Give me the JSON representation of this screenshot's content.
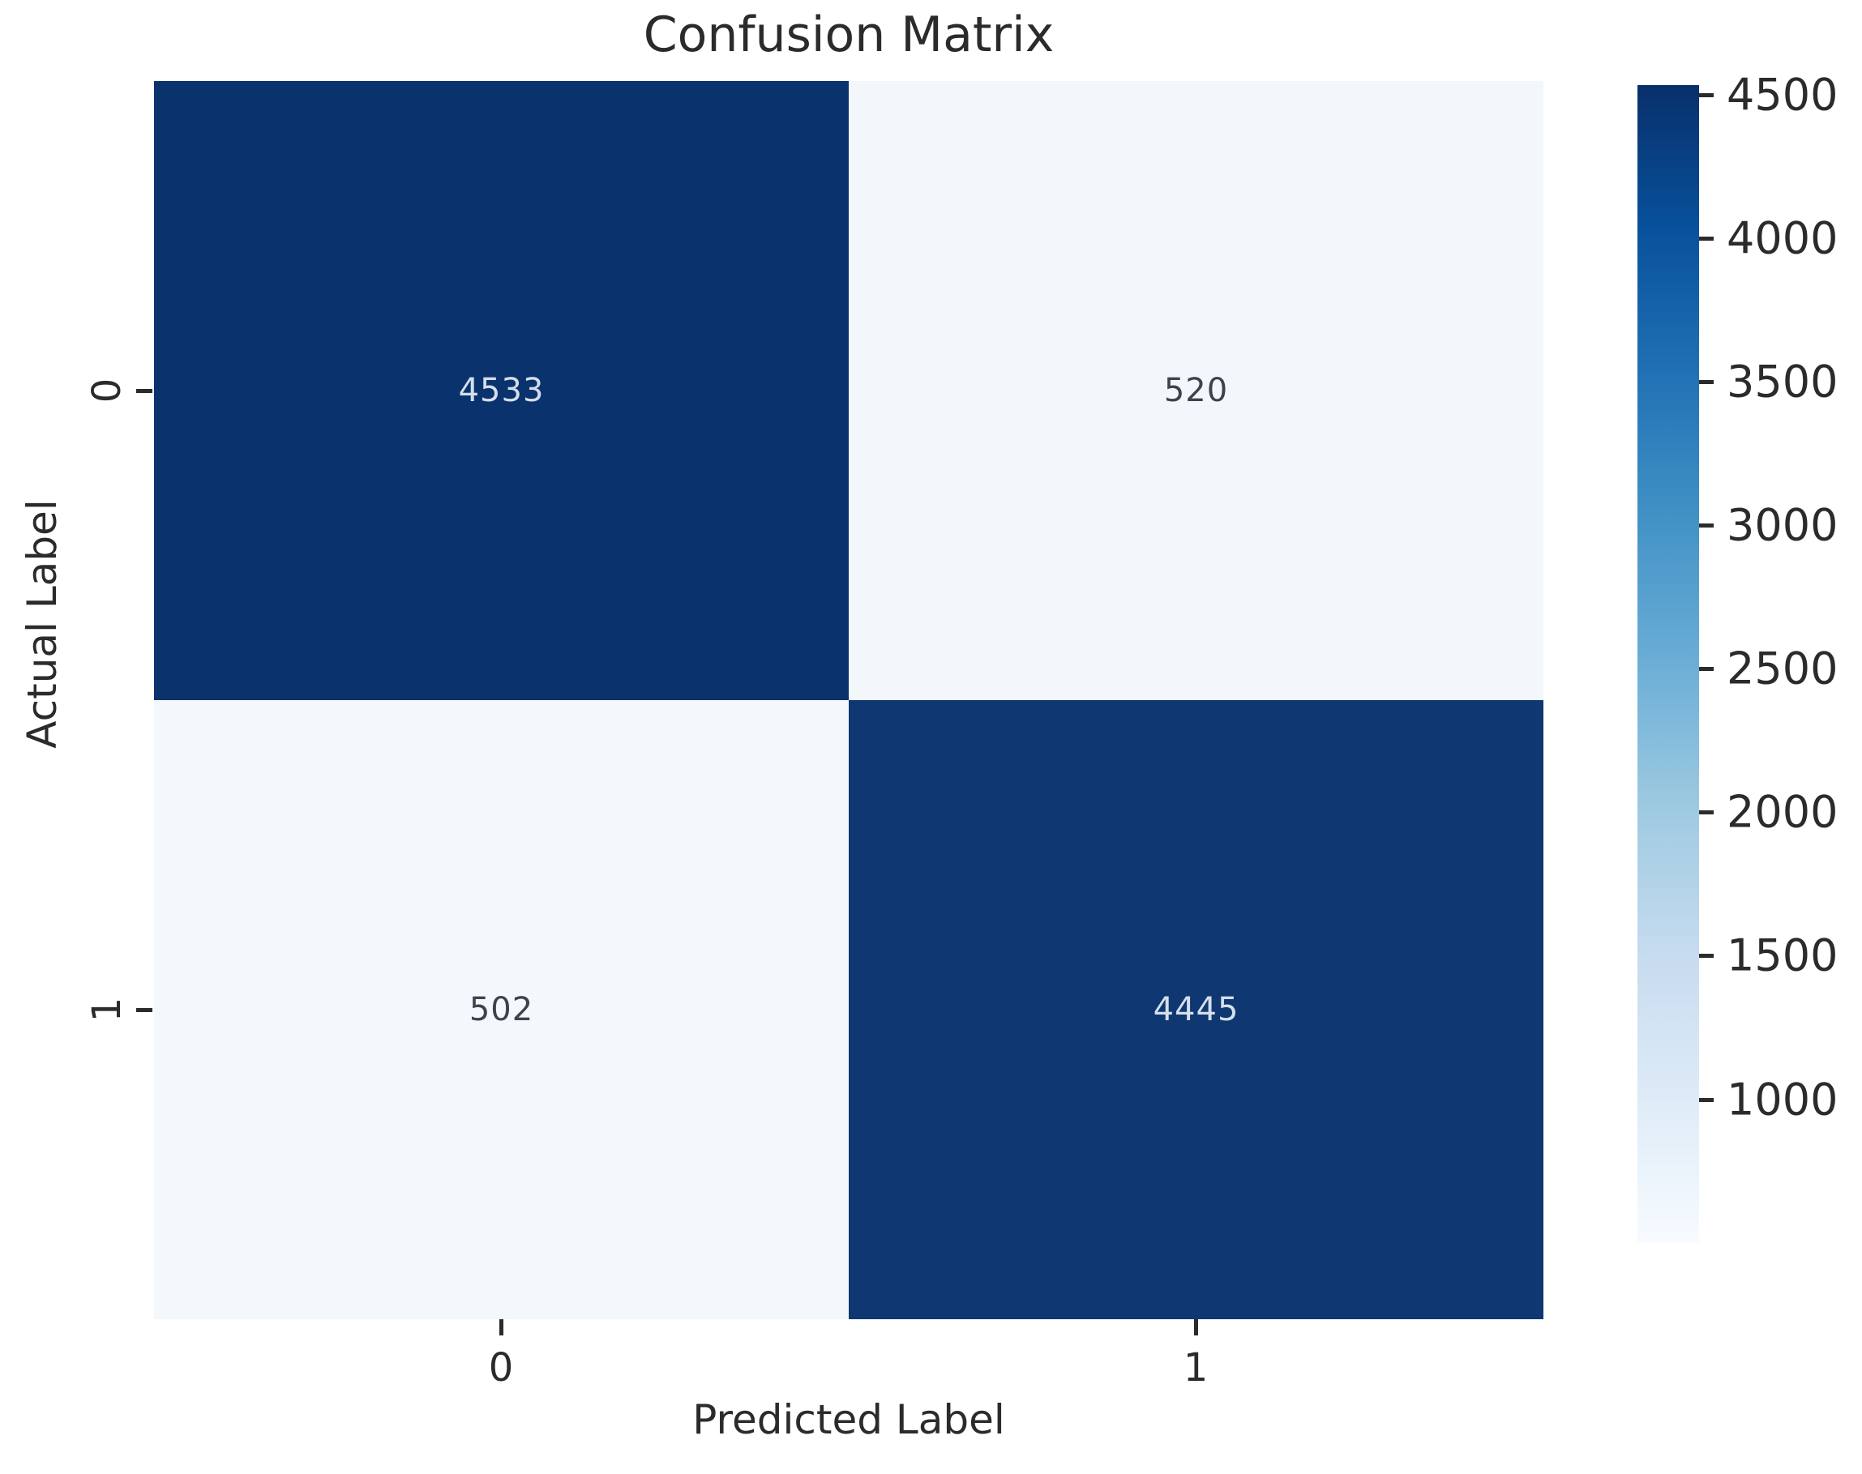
{
  "chart_data": {
    "type": "heatmap",
    "title": "Confusion Matrix",
    "xlabel": "Predicted Label",
    "ylabel": "Actual Label",
    "x_ticklabels": [
      "0",
      "1"
    ],
    "y_ticklabels": [
      "0",
      "1"
    ],
    "matrix": [
      [
        4533,
        520
      ],
      [
        502,
        4445
      ]
    ],
    "vmin": 502,
    "vmax": 4533,
    "colormap": "Blues",
    "grid": false,
    "legend_position": "right-colorbar",
    "colorbar": {
      "position": "right",
      "ticks": [
        4500,
        4000,
        3500,
        3000,
        2500,
        2000,
        1500,
        1000
      ],
      "gradient_top_to_bottom": [
        "#08306b",
        "#08519c",
        "#2171b5",
        "#4292c6",
        "#6baed6",
        "#9ecae1",
        "#c6dbef",
        "#deebf7",
        "#f7fbff"
      ]
    },
    "colors": {
      "cmap_min": "#f4f8fd",
      "cmap_max": "#0a336e",
      "annot_on_dark": "#d4dfeb",
      "annot_on_light": "#3c434b",
      "text": "#2b2b2b"
    }
  }
}
